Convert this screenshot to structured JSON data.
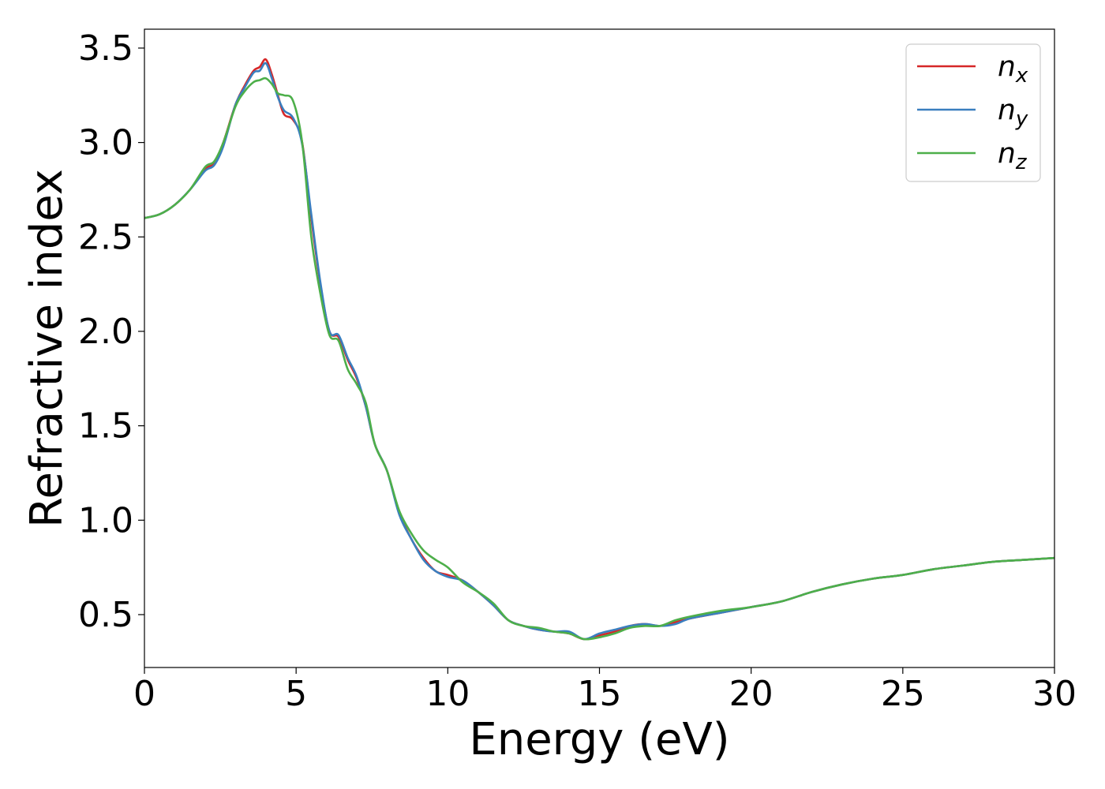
{
  "chart_data": {
    "type": "line",
    "title": "",
    "xlabel": "Energy (eV)",
    "ylabel": "Refractive index",
    "xlim": [
      0,
      30
    ],
    "ylim": [
      0.22,
      3.6
    ],
    "xticks": [
      0,
      5,
      10,
      15,
      20,
      25,
      30
    ],
    "xtick_labels": [
      "0",
      "5",
      "10",
      "15",
      "20",
      "25",
      "30"
    ],
    "yticks": [
      0.5,
      1.0,
      1.5,
      2.0,
      2.5,
      3.0,
      3.5
    ],
    "ytick_labels": [
      "0.5",
      "1.0",
      "1.5",
      "2.0",
      "2.5",
      "3.0",
      "3.5"
    ],
    "grid": false,
    "legend_position": "top-right",
    "series": [
      {
        "name": "nx",
        "legend_base": "n",
        "legend_sub": "x",
        "color": "#d62728",
        "x": [
          0,
          0.5,
          1,
          1.5,
          2,
          2.3,
          2.6,
          3,
          3.3,
          3.6,
          3.8,
          4.0,
          4.2,
          4.4,
          4.6,
          4.9,
          5.2,
          5.5,
          5.8,
          6.1,
          6.4,
          6.7,
          7.0,
          7.3,
          7.6,
          8.0,
          8.4,
          8.8,
          9.2,
          9.6,
          10.0,
          10.5,
          11.0,
          11.5,
          12.0,
          12.5,
          13.0,
          13.5,
          14.0,
          14.5,
          15.0,
          15.5,
          16.0,
          16.5,
          17.0,
          17.5,
          18.0,
          19.0,
          20.0,
          21.0,
          22.0,
          23.0,
          24.0,
          25.0,
          26.0,
          27.0,
          28.0,
          29.0,
          30.0
        ],
        "y": [
          2.6,
          2.62,
          2.67,
          2.75,
          2.86,
          2.89,
          3.0,
          3.2,
          3.3,
          3.38,
          3.4,
          3.44,
          3.36,
          3.25,
          3.15,
          3.12,
          3.0,
          2.6,
          2.25,
          2.0,
          1.97,
          1.85,
          1.75,
          1.6,
          1.4,
          1.26,
          1.04,
          0.9,
          0.8,
          0.73,
          0.71,
          0.68,
          0.62,
          0.55,
          0.47,
          0.44,
          0.42,
          0.41,
          0.4,
          0.37,
          0.39,
          0.41,
          0.44,
          0.45,
          0.44,
          0.46,
          0.48,
          0.51,
          0.54,
          0.57,
          0.62,
          0.66,
          0.69,
          0.71,
          0.74,
          0.76,
          0.78,
          0.79,
          0.8
        ]
      },
      {
        "name": "ny",
        "legend_base": "n",
        "legend_sub": "y",
        "color": "#3a7fbf",
        "x": [
          0,
          0.5,
          1,
          1.5,
          2,
          2.3,
          2.6,
          3,
          3.3,
          3.6,
          3.8,
          4.0,
          4.2,
          4.4,
          4.6,
          4.9,
          5.2,
          5.5,
          5.8,
          6.1,
          6.4,
          6.7,
          7.0,
          7.3,
          7.6,
          8.0,
          8.4,
          8.8,
          9.2,
          9.6,
          10.0,
          10.5,
          11.0,
          11.5,
          12.0,
          12.5,
          13.0,
          13.5,
          14.0,
          14.5,
          15.0,
          15.5,
          16.0,
          16.5,
          17.0,
          17.5,
          18.0,
          19.0,
          20.0,
          21.0,
          22.0,
          23.0,
          24.0,
          25.0,
          26.0,
          27.0,
          28.0,
          29.0,
          30.0
        ],
        "y": [
          2.6,
          2.62,
          2.67,
          2.75,
          2.85,
          2.88,
          2.98,
          3.2,
          3.29,
          3.37,
          3.38,
          3.42,
          3.34,
          3.24,
          3.17,
          3.13,
          2.99,
          2.62,
          2.26,
          2.0,
          1.98,
          1.86,
          1.76,
          1.6,
          1.4,
          1.26,
          1.03,
          0.9,
          0.79,
          0.73,
          0.7,
          0.68,
          0.62,
          0.55,
          0.47,
          0.44,
          0.42,
          0.41,
          0.41,
          0.37,
          0.4,
          0.42,
          0.44,
          0.45,
          0.44,
          0.45,
          0.48,
          0.51,
          0.54,
          0.57,
          0.62,
          0.66,
          0.69,
          0.71,
          0.74,
          0.76,
          0.78,
          0.79,
          0.8
        ]
      },
      {
        "name": "nz",
        "legend_base": "n",
        "legend_sub": "z",
        "color": "#4daf4a",
        "x": [
          0,
          0.5,
          1,
          1.5,
          2,
          2.3,
          2.6,
          3,
          3.3,
          3.6,
          3.8,
          4.0,
          4.2,
          4.4,
          4.6,
          4.9,
          5.2,
          5.5,
          5.8,
          6.1,
          6.4,
          6.7,
          7.0,
          7.3,
          7.6,
          8.0,
          8.4,
          8.8,
          9.2,
          9.6,
          10.0,
          10.5,
          11.0,
          11.5,
          12.0,
          12.5,
          13.0,
          13.5,
          14.0,
          14.5,
          15.0,
          15.5,
          16.0,
          16.5,
          17.0,
          17.5,
          18.0,
          19.0,
          20.0,
          21.0,
          22.0,
          23.0,
          24.0,
          25.0,
          26.0,
          27.0,
          28.0,
          29.0,
          30.0
        ],
        "y": [
          2.6,
          2.62,
          2.67,
          2.75,
          2.87,
          2.9,
          3.0,
          3.19,
          3.27,
          3.32,
          3.33,
          3.34,
          3.31,
          3.26,
          3.25,
          3.22,
          3.0,
          2.5,
          2.2,
          1.98,
          1.95,
          1.8,
          1.72,
          1.62,
          1.4,
          1.26,
          1.05,
          0.93,
          0.84,
          0.79,
          0.75,
          0.67,
          0.62,
          0.56,
          0.47,
          0.44,
          0.43,
          0.41,
          0.4,
          0.37,
          0.38,
          0.4,
          0.43,
          0.44,
          0.44,
          0.47,
          0.49,
          0.52,
          0.54,
          0.57,
          0.62,
          0.66,
          0.69,
          0.71,
          0.74,
          0.76,
          0.78,
          0.79,
          0.8
        ]
      }
    ]
  }
}
